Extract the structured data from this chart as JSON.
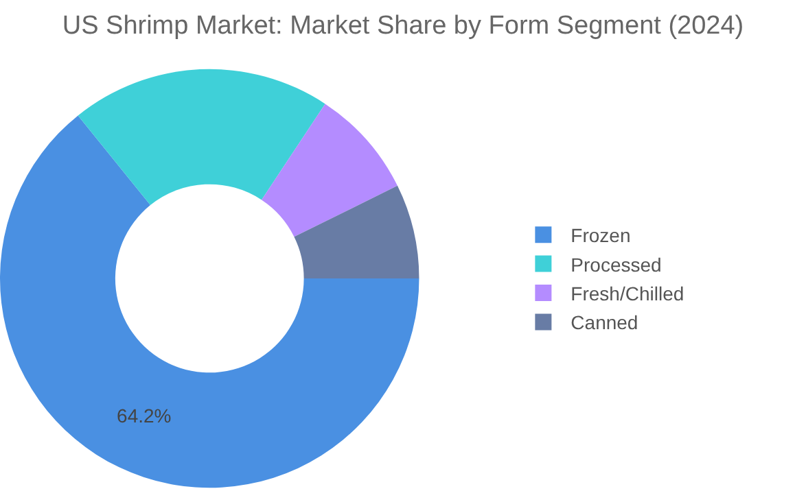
{
  "chart_data": {
    "type": "donut",
    "title": "US Shrimp Market: Market Share by Form Segment (2024)",
    "categories": [
      "Frozen",
      "Processed",
      "Fresh/Chilled",
      "Canned"
    ],
    "values": [
      64.2,
      20.1,
      8.4,
      7.3
    ],
    "value_labels": [
      "64.2%",
      null,
      null,
      null
    ],
    "colors": [
      "#4a90e2",
      "#3fd0d8",
      "#b48cff",
      "#687ca5"
    ],
    "legend": "right"
  }
}
